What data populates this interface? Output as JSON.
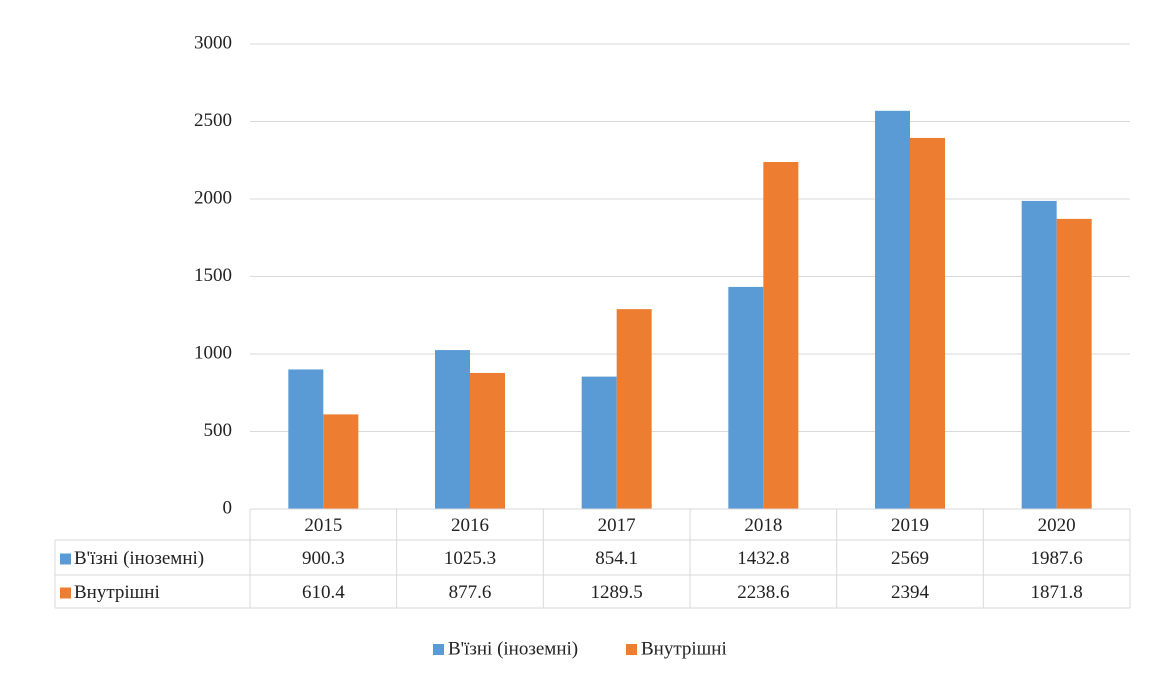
{
  "chart_data": {
    "type": "bar",
    "categories": [
      "2015",
      "2016",
      "2017",
      "2018",
      "2019",
      "2020"
    ],
    "series": [
      {
        "name": "В'їзні (іноземні)",
        "color": "#5b9bd5",
        "values": [
          900.3,
          1025.3,
          854.1,
          1432.8,
          2569,
          1987.6
        ]
      },
      {
        "name": "Внутрішні",
        "color": "#ed7d31",
        "values": [
          610.4,
          877.6,
          1289.5,
          2238.6,
          2394,
          1871.8
        ]
      }
    ],
    "ylim": [
      0,
      3000
    ],
    "yticks": [
      0,
      500,
      1000,
      1500,
      2000,
      2500,
      3000
    ],
    "grid": true,
    "legend": "bottom"
  }
}
